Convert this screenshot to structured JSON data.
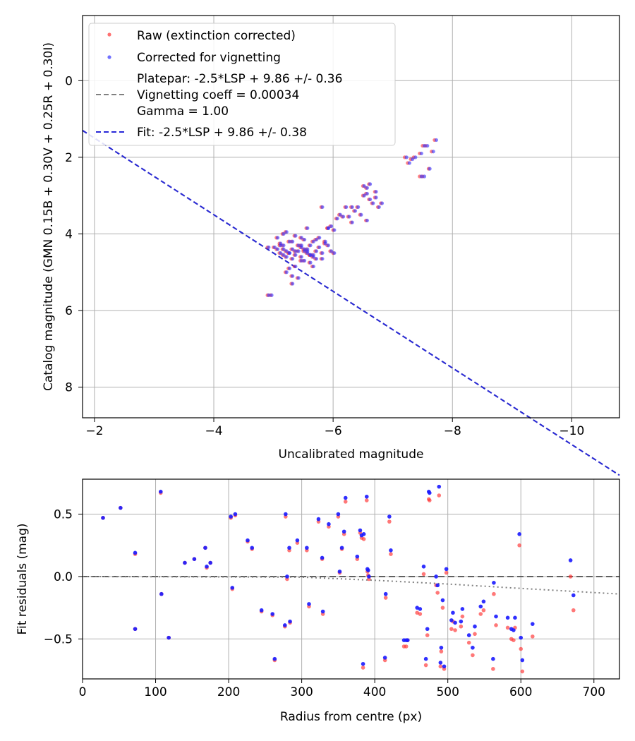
{
  "chart_data": [
    {
      "type": "scatter",
      "xlabel": "Uncalibrated magnitude",
      "ylabel": "Catalog magnitude (GMN 0.15B + 0.30V + 0.25R + 0.30I)",
      "xlim": [
        -1.8,
        -10.8
      ],
      "ylim": [
        8.8,
        -1.7
      ],
      "x_inverted": true,
      "y_inverted": true,
      "xticks": [
        -2,
        -4,
        -6,
        -8,
        -10
      ],
      "xtick_labels": [
        "−2",
        "−4",
        "−6",
        "−8",
        "−10"
      ],
      "yticks": [
        0,
        2,
        4,
        6,
        8
      ],
      "ytick_labels": [
        "0",
        "2",
        "4",
        "6",
        "8"
      ],
      "grid": true,
      "legend_placement": "top-left",
      "legend": [
        {
          "label": "Raw (extinction corrected)",
          "kind": "marker",
          "color": "#ff4d4d"
        },
        {
          "label": "Corrected for vignetting",
          "kind": "marker",
          "color": "#4d4dff"
        },
        {
          "label": "Platepar: -2.5*LSP + 9.86 +/- 0.36",
          "label2": "Vignetting coeff = 0.00034",
          "label3": "Gamma = 1.00",
          "kind": "dashed",
          "color": "#808080"
        },
        {
          "label": "Fit: -2.5*LSP + 9.86 +/- 0.38",
          "kind": "dashed",
          "color": "#2828d8"
        }
      ],
      "fit_line": {
        "slope": -1.0,
        "intercept": -0.5
      },
      "series": [
        {
          "name": "Raw (extinction corrected)",
          "color": "#ff3030",
          "x": [
            -4.9,
            -4.95,
            -4.9,
            -5.0,
            -5.05,
            -5.1,
            -5.1,
            -5.15,
            -5.2,
            -5.2,
            -5.25,
            -5.3,
            -5.3,
            -5.3,
            -5.35,
            -5.4,
            -5.4,
            -5.45,
            -5.45,
            -5.5,
            -5.5,
            -5.55,
            -5.55,
            -5.6,
            -5.6,
            -5.65,
            -5.65,
            -5.7,
            -5.7,
            -5.75,
            -5.8,
            -5.85,
            -5.9,
            -5.95,
            -6.0,
            -6.05,
            -6.1,
            -6.2,
            -6.25,
            -6.3,
            -6.3,
            -6.35,
            -6.4,
            -6.5,
            -6.55,
            -6.6,
            -6.6,
            -6.65,
            -6.7,
            -6.75,
            -5.15,
            -5.25,
            -5.35,
            -5.45,
            -5.55,
            -5.65,
            -5.75,
            -5.85,
            -5.25,
            -5.35,
            -5.5,
            -5.6,
            -5.8,
            -5.2,
            -5.3,
            -5.4,
            -5.5,
            -5.15,
            -5.6,
            -5.7,
            -5.35,
            -5.45,
            -5.8,
            -5.9,
            -6.15,
            -6.45,
            -6.55,
            -7.2,
            -7.25,
            -7.3,
            -7.35,
            -7.45,
            -7.5,
            -7.55,
            -7.65,
            -7.7,
            -7.5,
            -7.45,
            -6.5,
            -6.55,
            -5.9,
            -5.95,
            -5.2,
            -5.45,
            -5.1,
            -5.3,
            -6.0,
            -5.55,
            -5.15,
            -5.05,
            -5.25,
            -5.65,
            -6.7,
            -6.8,
            -7.6
          ],
          "y": [
            5.6,
            5.6,
            4.35,
            4.35,
            4.4,
            4.3,
            4.5,
            4.0,
            4.45,
            4.6,
            4.5,
            4.2,
            4.4,
            4.65,
            4.55,
            4.45,
            4.3,
            4.1,
            4.6,
            4.45,
            4.7,
            4.5,
            4.4,
            4.55,
            4.3,
            4.85,
            4.2,
            4.45,
            4.65,
            4.1,
            4.5,
            4.2,
            4.3,
            3.8,
            3.9,
            3.6,
            3.5,
            3.3,
            3.55,
            3.7,
            3.3,
            3.4,
            3.3,
            2.75,
            2.8,
            2.7,
            3.1,
            3.2,
            3.05,
            3.3,
            4.3,
            4.2,
            4.05,
            4.7,
            4.45,
            4.6,
            4.35,
            4.25,
            4.9,
            4.85,
            4.4,
            4.55,
            4.65,
            5.0,
            5.1,
            5.15,
            4.15,
            4.55,
            4.75,
            4.15,
            4.45,
            4.35,
            3.3,
            3.85,
            3.55,
            3.5,
            3.65,
            2.0,
            2.15,
            2.05,
            2.0,
            1.9,
            1.7,
            1.7,
            1.85,
            1.55,
            2.5,
            2.5,
            3.0,
            2.95,
            3.85,
            4.45,
            3.95,
            4.3,
            4.25,
            5.3,
            4.5,
            3.85,
            4.4,
            4.1,
            4.5,
            4.55,
            2.9,
            3.2,
            2.3
          ]
        },
        {
          "name": "Corrected for vignetting",
          "color": "#3030ff",
          "x": [
            -4.92,
            -4.97,
            -4.92,
            -5.02,
            -5.07,
            -5.12,
            -5.12,
            -5.17,
            -5.22,
            -5.22,
            -5.27,
            -5.32,
            -5.32,
            -5.32,
            -5.37,
            -5.42,
            -5.42,
            -5.47,
            -5.47,
            -5.52,
            -5.52,
            -5.57,
            -5.57,
            -5.62,
            -5.62,
            -5.67,
            -5.67,
            -5.72,
            -5.72,
            -5.77,
            -5.82,
            -5.87,
            -5.92,
            -5.97,
            -6.02,
            -6.07,
            -6.12,
            -6.22,
            -6.27,
            -6.32,
            -6.32,
            -6.37,
            -6.42,
            -6.52,
            -6.57,
            -6.62,
            -6.62,
            -6.67,
            -6.72,
            -6.77,
            -5.17,
            -5.27,
            -5.37,
            -5.47,
            -5.57,
            -5.67,
            -5.77,
            -5.87,
            -5.27,
            -5.37,
            -5.52,
            -5.62,
            -5.82,
            -5.22,
            -5.32,
            -5.42,
            -5.52,
            -5.17,
            -5.62,
            -5.72,
            -5.37,
            -5.47,
            -5.82,
            -5.92,
            -6.17,
            -6.47,
            -6.57,
            -7.23,
            -7.28,
            -7.33,
            -7.38,
            -7.48,
            -7.53,
            -7.58,
            -7.68,
            -7.73,
            -7.53,
            -7.48,
            -6.52,
            -6.57,
            -5.92,
            -5.97,
            -5.22,
            -5.47,
            -5.12,
            -5.32,
            -6.02,
            -5.57,
            -5.17,
            -5.07,
            -5.27,
            -5.67,
            -6.72,
            -6.82,
            -7.62
          ],
          "y": [
            5.6,
            5.6,
            4.35,
            4.35,
            4.4,
            4.3,
            4.5,
            4.0,
            4.45,
            4.6,
            4.5,
            4.2,
            4.4,
            4.65,
            4.55,
            4.45,
            4.3,
            4.1,
            4.6,
            4.45,
            4.7,
            4.5,
            4.4,
            4.55,
            4.3,
            4.85,
            4.2,
            4.45,
            4.65,
            4.1,
            4.5,
            4.2,
            4.3,
            3.8,
            3.9,
            3.6,
            3.5,
            3.3,
            3.55,
            3.7,
            3.3,
            3.4,
            3.3,
            2.75,
            2.8,
            2.7,
            3.1,
            3.2,
            3.05,
            3.3,
            4.3,
            4.2,
            4.05,
            4.7,
            4.45,
            4.6,
            4.35,
            4.25,
            4.9,
            4.85,
            4.4,
            4.55,
            4.65,
            5.0,
            5.1,
            5.15,
            4.15,
            4.55,
            4.75,
            4.15,
            4.45,
            4.35,
            3.3,
            3.85,
            3.55,
            3.5,
            3.65,
            2.0,
            2.15,
            2.05,
            2.0,
            1.9,
            1.7,
            1.7,
            1.85,
            1.55,
            2.5,
            2.5,
            3.0,
            2.95,
            3.85,
            4.45,
            3.95,
            4.3,
            4.25,
            5.3,
            4.5,
            3.85,
            4.4,
            4.1,
            4.5,
            4.55,
            2.9,
            3.2,
            2.3
          ]
        }
      ]
    },
    {
      "type": "scatter",
      "xlabel": "Radius from centre (px)",
      "ylabel": "Fit residuals (mag)",
      "xlim": [
        0,
        735
      ],
      "ylim": [
        -0.82,
        0.78
      ],
      "xticks": [
        0,
        100,
        200,
        300,
        400,
        500,
        600,
        700
      ],
      "xtick_labels": [
        "0",
        "100",
        "200",
        "300",
        "400",
        "500",
        "600",
        "700"
      ],
      "yticks": [
        -0.5,
        0.0,
        0.5
      ],
      "ytick_labels": [
        "−0.5",
        "0.0",
        "0.5"
      ],
      "grid": true,
      "zero_line": {
        "y": 0,
        "style": "dashed",
        "color": "#606060"
      },
      "vignetting_curve": {
        "style": "dotted",
        "color": "#808080",
        "points_x": [
          0,
          300,
          400,
          500,
          600,
          735
        ],
        "points_y": [
          0.0,
          -0.005,
          -0.03,
          -0.06,
          -0.095,
          -0.14
        ]
      },
      "series": [
        {
          "name": "Raw (extinction corrected)",
          "color": "#ff3030",
          "x": [
            28,
            52,
            72,
            72,
            107,
            108,
            118,
            140,
            153,
            168,
            170,
            175,
            203,
            205,
            209,
            226,
            232,
            245,
            260,
            263,
            277,
            278,
            280,
            283,
            284,
            294,
            307,
            310,
            323,
            328,
            329,
            337,
            350,
            352,
            355,
            358,
            360,
            376,
            380,
            382,
            384,
            385,
            389,
            390,
            391,
            392,
            414,
            415,
            420,
            422,
            440,
            443,
            445,
            458,
            462,
            467,
            470,
            472,
            474,
            475,
            484,
            486,
            488,
            490,
            491,
            493,
            495,
            498,
            505,
            507,
            510,
            518,
            520,
            529,
            534,
            537,
            545,
            549,
            562,
            563,
            566,
            582,
            587,
            590,
            592,
            598,
            600,
            602,
            616,
            668,
            672
          ],
          "y": [
            0.47,
            0.55,
            0.18,
            -0.42,
            0.67,
            -0.14,
            -0.49,
            0.11,
            0.14,
            0.23,
            0.07,
            0.11,
            0.47,
            -0.1,
            0.49,
            0.28,
            0.22,
            -0.28,
            -0.31,
            -0.67,
            -0.4,
            0.48,
            -0.02,
            0.21,
            -0.37,
            0.27,
            0.21,
            -0.24,
            0.44,
            0.14,
            -0.3,
            0.4,
            0.48,
            0.03,
            0.22,
            0.34,
            0.6,
            0.14,
            0.35,
            0.31,
            -0.73,
            0.3,
            0.61,
            0.04,
            0.01,
            -0.02,
            -0.67,
            -0.17,
            0.44,
            0.18,
            -0.56,
            -0.56,
            -0.51,
            -0.29,
            -0.3,
            0.02,
            -0.71,
            -0.47,
            0.62,
            0.61,
            -0.07,
            -0.13,
            0.65,
            -0.72,
            -0.6,
            -0.25,
            -0.74,
            0.03,
            -0.42,
            -0.36,
            -0.43,
            -0.4,
            -0.32,
            -0.53,
            -0.63,
            -0.46,
            -0.3,
            -0.27,
            -0.74,
            -0.14,
            -0.39,
            -0.41,
            -0.5,
            -0.51,
            -0.41,
            0.25,
            -0.58,
            -0.76,
            -0.48,
            0.0,
            -0.27
          ]
        },
        {
          "name": "Corrected for vignetting",
          "color": "#1a1aff",
          "x": [
            28,
            52,
            72,
            72,
            107,
            108,
            118,
            140,
            153,
            168,
            170,
            175,
            203,
            205,
            209,
            226,
            232,
            245,
            260,
            263,
            277,
            278,
            280,
            283,
            284,
            294,
            307,
            310,
            323,
            328,
            329,
            337,
            350,
            352,
            355,
            358,
            360,
            376,
            380,
            382,
            384,
            385,
            389,
            390,
            391,
            392,
            414,
            415,
            420,
            422,
            440,
            443,
            445,
            458,
            462,
            467,
            470,
            472,
            474,
            475,
            484,
            486,
            488,
            490,
            491,
            493,
            495,
            498,
            505,
            507,
            510,
            518,
            520,
            529,
            534,
            537,
            545,
            549,
            562,
            563,
            566,
            582,
            587,
            590,
            592,
            598,
            600,
            602,
            616,
            668,
            672
          ],
          "y": [
            0.47,
            0.55,
            0.19,
            -0.42,
            0.68,
            -0.14,
            -0.49,
            0.11,
            0.14,
            0.23,
            0.08,
            0.11,
            0.48,
            -0.09,
            0.5,
            0.29,
            0.23,
            -0.27,
            -0.3,
            -0.66,
            -0.39,
            0.5,
            0.0,
            0.23,
            -0.36,
            0.29,
            0.23,
            -0.22,
            0.46,
            0.15,
            -0.28,
            0.42,
            0.5,
            0.04,
            0.23,
            0.36,
            0.63,
            0.16,
            0.37,
            0.33,
            -0.7,
            0.34,
            0.64,
            0.06,
            0.05,
            0.0,
            -0.65,
            -0.14,
            0.48,
            0.21,
            -0.51,
            -0.51,
            -0.51,
            -0.25,
            -0.26,
            0.08,
            -0.66,
            -0.42,
            0.68,
            0.67,
            0.0,
            -0.07,
            0.72,
            -0.69,
            -0.57,
            -0.19,
            -0.72,
            0.06,
            -0.35,
            -0.29,
            -0.37,
            -0.36,
            -0.26,
            -0.47,
            -0.57,
            -0.4,
            -0.24,
            -0.2,
            -0.66,
            -0.05,
            -0.32,
            -0.33,
            -0.42,
            -0.43,
            -0.33,
            0.34,
            -0.49,
            -0.67,
            -0.38,
            0.13,
            -0.15
          ]
        }
      ]
    }
  ]
}
